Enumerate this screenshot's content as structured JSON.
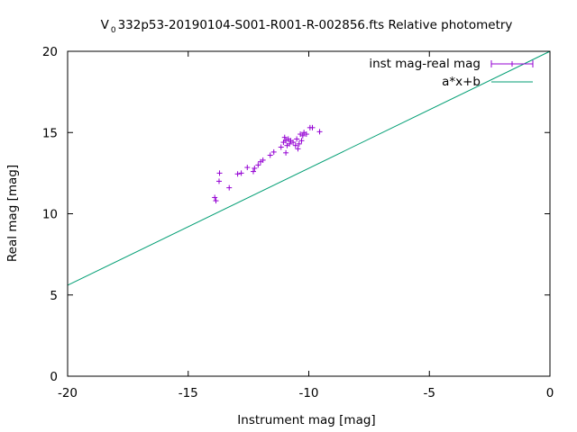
{
  "chart_data": {
    "type": "scatter",
    "title_parts": [
      "V",
      "0",
      "332p53-20190104-S001-R001-R-002856.fts Relative photometry"
    ],
    "xlabel": "Instrument mag [mag]",
    "ylabel": "Real mag [mag]",
    "xlim": [
      -20,
      0
    ],
    "ylim": [
      0,
      20
    ],
    "x_ticks": [
      -20,
      -15,
      -10,
      -5,
      0
    ],
    "y_ticks": [
      0,
      5,
      10,
      15,
      20
    ],
    "x_tick_labels": [
      "-20",
      "-15",
      "-10",
      "-5",
      "0"
    ],
    "y_tick_labels": [
      "0",
      "5",
      "10",
      "15",
      "20"
    ],
    "grid": false,
    "legend_position": "top-right",
    "fit": {
      "name": "a*x+b",
      "color": "#009e73",
      "a": 0.72,
      "b": 20.0
    },
    "series": [
      {
        "name": "inst mag-real mag",
        "color": "#9400d3",
        "points": [
          {
            "x": -13.9,
            "y": 11.0
          },
          {
            "x": -13.85,
            "y": 10.8
          },
          {
            "x": -13.7,
            "y": 12.5
          },
          {
            "x": -13.72,
            "y": 12.0
          },
          {
            "x": -13.3,
            "y": 11.6
          },
          {
            "x": -12.95,
            "y": 12.45
          },
          {
            "x": -12.8,
            "y": 12.5
          },
          {
            "x": -12.55,
            "y": 12.85
          },
          {
            "x": -12.3,
            "y": 12.6
          },
          {
            "x": -12.25,
            "y": 12.8
          },
          {
            "x": -12.1,
            "y": 13.0
          },
          {
            "x": -12.0,
            "y": 13.2
          },
          {
            "x": -11.9,
            "y": 13.3
          },
          {
            "x": -11.6,
            "y": 13.6
          },
          {
            "x": -11.45,
            "y": 13.8
          },
          {
            "x": -11.15,
            "y": 14.1
          },
          {
            "x": -11.05,
            "y": 14.4
          },
          {
            "x": -11.0,
            "y": 14.7
          },
          {
            "x": -10.95,
            "y": 14.5
          },
          {
            "x": -10.9,
            "y": 14.2
          },
          {
            "x": -10.85,
            "y": 14.6
          },
          {
            "x": -10.95,
            "y": 13.75
          },
          {
            "x": -10.8,
            "y": 14.3
          },
          {
            "x": -10.75,
            "y": 14.5
          },
          {
            "x": -10.65,
            "y": 14.4
          },
          {
            "x": -10.55,
            "y": 14.2
          },
          {
            "x": -10.5,
            "y": 14.6
          },
          {
            "x": -10.45,
            "y": 14.0
          },
          {
            "x": -10.4,
            "y": 14.3
          },
          {
            "x": -10.35,
            "y": 14.9
          },
          {
            "x": -10.3,
            "y": 14.5
          },
          {
            "x": -10.25,
            "y": 14.8
          },
          {
            "x": -10.2,
            "y": 15.0
          },
          {
            "x": -10.1,
            "y": 14.9
          },
          {
            "x": -9.95,
            "y": 15.3
          },
          {
            "x": -9.85,
            "y": 15.3
          },
          {
            "x": -9.55,
            "y": 15.05
          }
        ]
      }
    ]
  }
}
